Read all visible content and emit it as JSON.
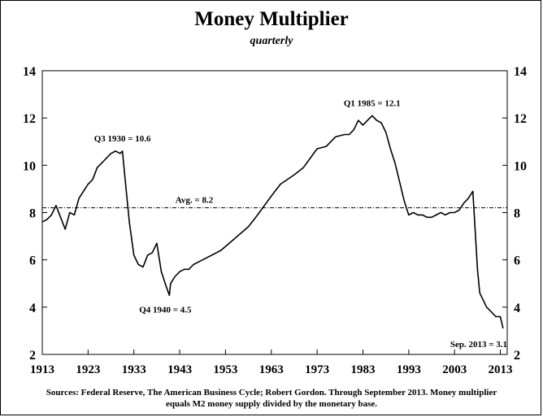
{
  "chart_data": {
    "type": "line",
    "title": "Money Multiplier",
    "subtitle": "quarterly",
    "xlabel": "",
    "ylabel": "",
    "x_ticks": [
      "1913",
      "1923",
      "1933",
      "1943",
      "1953",
      "1963",
      "1973",
      "1983",
      "1993",
      "2003",
      "2013"
    ],
    "y_ticks": [
      "2",
      "4",
      "6",
      "8",
      "10",
      "12",
      "14"
    ],
    "xlim": [
      1913,
      2014.5
    ],
    "ylim": [
      2,
      14
    ],
    "grid": false,
    "average": {
      "value": 8.2,
      "label": "Avg. = 8.2"
    },
    "annotations": [
      {
        "text": "Q3 1930 = 10.6",
        "x": 1930.5,
        "y": 10.6
      },
      {
        "text": "Q4 1940 = 4.5",
        "x": 1940.75,
        "y": 4.5
      },
      {
        "text": "Q1 1985 = 12.1",
        "x": 1985.0,
        "y": 12.1
      },
      {
        "text": "Sep. 2013 = 3.1",
        "x": 2013.6,
        "y": 3.1
      }
    ],
    "series": [
      {
        "x": [
          1913,
          1914,
          1915,
          1916,
          1917,
          1918,
          1919,
          1920,
          1921,
          1922,
          1923,
          1924,
          1925,
          1926,
          1927,
          1928,
          1929,
          1930,
          1930.5,
          1931,
          1932,
          1933,
          1934,
          1935,
          1936,
          1937,
          1938,
          1939,
          1940,
          1940.75,
          1941,
          1942,
          1943,
          1944,
          1945,
          1946,
          1947,
          1948,
          1950,
          1952,
          1955,
          1958,
          1960,
          1963,
          1965,
          1968,
          1970,
          1973,
          1975,
          1977,
          1979,
          1980,
          1981,
          1982,
          1983,
          1984,
          1985,
          1986,
          1987,
          1988,
          1989,
          1990,
          1991,
          1992,
          1993,
          1994,
          1995,
          1996,
          1997,
          1998,
          1999,
          2000,
          2001,
          2002,
          2003,
          2004,
          2005,
          2006,
          2007,
          2008,
          2008.5,
          2009,
          2010,
          2011,
          2012,
          2013,
          2013.6
        ],
        "values": [
          7.6,
          7.7,
          7.9,
          8.3,
          7.8,
          7.3,
          8.0,
          7.9,
          8.6,
          8.9,
          9.2,
          9.4,
          9.9,
          10.1,
          10.3,
          10.5,
          10.6,
          10.5,
          10.6,
          9.6,
          7.6,
          6.2,
          5.8,
          5.7,
          6.2,
          6.3,
          6.7,
          5.5,
          4.9,
          4.5,
          5.0,
          5.3,
          5.5,
          5.6,
          5.6,
          5.8,
          5.9,
          6.0,
          6.2,
          6.4,
          6.9,
          7.4,
          7.9,
          8.7,
          9.2,
          9.6,
          9.9,
          10.7,
          10.8,
          11.2,
          11.3,
          11.3,
          11.5,
          11.9,
          11.7,
          11.9,
          12.1,
          11.9,
          11.8,
          11.4,
          10.7,
          10.1,
          9.3,
          8.5,
          7.9,
          8.0,
          7.9,
          7.9,
          7.8,
          7.8,
          7.9,
          8.0,
          7.9,
          8.0,
          8.0,
          8.1,
          8.4,
          8.6,
          8.9,
          5.6,
          4.6,
          4.4,
          4.0,
          3.8,
          3.6,
          3.6,
          3.1
        ]
      }
    ]
  },
  "source_text": {
    "line1": "Sources: Federal Reserve, The American Business Cycle; Robert Gordon. Through September 2013. Money multiplier",
    "line2": "equals M2 money supply divided by the monetary base."
  },
  "colors": {
    "line": "#000000",
    "average_line": "#000000",
    "background": "#ffffff"
  }
}
